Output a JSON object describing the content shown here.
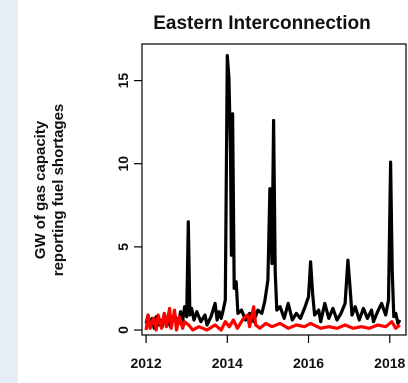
{
  "chart_data": {
    "type": "line",
    "title": "Eastern Interconnection",
    "ylabel_line1": "GW of gas capacity",
    "ylabel_line2": "reporting fuel shortages",
    "xlabel": "",
    "xlim": [
      2011.9,
      2018.4
    ],
    "ylim": [
      -0.3,
      17.2
    ],
    "x_ticks": [
      2012,
      2014,
      2016,
      2018
    ],
    "y_ticks": [
      0,
      5,
      10,
      15
    ],
    "grid": false,
    "series": [
      {
        "color": "#000000",
        "points": [
          [
            2012.0,
            0.4
          ],
          [
            2012.05,
            0.9
          ],
          [
            2012.1,
            0.2
          ],
          [
            2012.15,
            0.7
          ],
          [
            2012.2,
            0.1
          ],
          [
            2012.25,
            0.8
          ],
          [
            2012.3,
            0.3
          ],
          [
            2012.35,
            0.6
          ],
          [
            2012.4,
            0.2
          ],
          [
            2012.45,
            1.0
          ],
          [
            2012.5,
            0.3
          ],
          [
            2012.55,
            0.7
          ],
          [
            2012.6,
            0.2
          ],
          [
            2012.7,
            0.9
          ],
          [
            2012.8,
            0.4
          ],
          [
            2012.85,
            1.1
          ],
          [
            2012.9,
            0.5
          ],
          [
            2012.95,
            1.4
          ],
          [
            2013.0,
            0.8
          ],
          [
            2013.04,
            6.5
          ],
          [
            2013.08,
            0.9
          ],
          [
            2013.12,
            1.3
          ],
          [
            2013.18,
            0.6
          ],
          [
            2013.25,
            1.1
          ],
          [
            2013.35,
            0.5
          ],
          [
            2013.45,
            0.9
          ],
          [
            2013.5,
            0.3
          ],
          [
            2013.6,
            0.8
          ],
          [
            2013.7,
            1.6
          ],
          [
            2013.75,
            0.6
          ],
          [
            2013.8,
            1.1
          ],
          [
            2013.85,
            0.7
          ],
          [
            2013.9,
            1.2
          ],
          [
            2013.95,
            1.8
          ],
          [
            2014.0,
            16.5
          ],
          [
            2014.04,
            15.2
          ],
          [
            2014.08,
            10.8
          ],
          [
            2014.1,
            4.5
          ],
          [
            2014.13,
            13.0
          ],
          [
            2014.17,
            2.5
          ],
          [
            2014.22,
            2.9
          ],
          [
            2014.26,
            1.0
          ],
          [
            2014.35,
            1.2
          ],
          [
            2014.45,
            0.6
          ],
          [
            2014.55,
            1.0
          ],
          [
            2014.65,
            0.5
          ],
          [
            2014.75,
            1.2
          ],
          [
            2014.85,
            1.0
          ],
          [
            2014.92,
            1.7
          ],
          [
            2015.0,
            3.0
          ],
          [
            2015.05,
            8.5
          ],
          [
            2015.1,
            4.0
          ],
          [
            2015.14,
            12.6
          ],
          [
            2015.18,
            3.5
          ],
          [
            2015.22,
            1.2
          ],
          [
            2015.3,
            1.4
          ],
          [
            2015.4,
            0.7
          ],
          [
            2015.5,
            1.6
          ],
          [
            2015.6,
            0.6
          ],
          [
            2015.7,
            1.0
          ],
          [
            2015.8,
            0.7
          ],
          [
            2015.9,
            1.3
          ],
          [
            2016.0,
            2.0
          ],
          [
            2016.05,
            4.1
          ],
          [
            2016.1,
            2.2
          ],
          [
            2016.15,
            0.9
          ],
          [
            2016.25,
            1.2
          ],
          [
            2016.3,
            0.5
          ],
          [
            2016.4,
            1.6
          ],
          [
            2016.5,
            0.7
          ],
          [
            2016.6,
            1.3
          ],
          [
            2016.7,
            0.6
          ],
          [
            2016.8,
            1.0
          ],
          [
            2016.9,
            1.6
          ],
          [
            2016.97,
            4.2
          ],
          [
            2017.02,
            2.6
          ],
          [
            2017.07,
            0.9
          ],
          [
            2017.15,
            1.4
          ],
          [
            2017.25,
            0.6
          ],
          [
            2017.35,
            1.3
          ],
          [
            2017.45,
            0.7
          ],
          [
            2017.55,
            1.2
          ],
          [
            2017.6,
            0.5
          ],
          [
            2017.7,
            1.1
          ],
          [
            2017.8,
            1.6
          ],
          [
            2017.9,
            0.9
          ],
          [
            2017.97,
            1.8
          ],
          [
            2018.02,
            10.1
          ],
          [
            2018.06,
            3.6
          ],
          [
            2018.1,
            0.8
          ],
          [
            2018.15,
            1.0
          ],
          [
            2018.2,
            0.4
          ],
          [
            2018.25,
            0.6
          ]
        ]
      },
      {
        "color": "#ff0000",
        "points": [
          [
            2012.0,
            0.0
          ],
          [
            2012.05,
            0.9
          ],
          [
            2012.1,
            0.1
          ],
          [
            2012.18,
            0.7
          ],
          [
            2012.25,
            0.0
          ],
          [
            2012.3,
            0.9
          ],
          [
            2012.38,
            0.1
          ],
          [
            2012.45,
            1.0
          ],
          [
            2012.5,
            0.2
          ],
          [
            2012.58,
            1.3
          ],
          [
            2012.62,
            0.1
          ],
          [
            2012.7,
            1.2
          ],
          [
            2012.75,
            0.0
          ],
          [
            2012.82,
            0.8
          ],
          [
            2012.9,
            0.1
          ],
          [
            2012.95,
            0.5
          ],
          [
            2013.05,
            0.3
          ],
          [
            2013.15,
            0.0
          ],
          [
            2013.3,
            0.2
          ],
          [
            2013.5,
            0.0
          ],
          [
            2013.7,
            0.3
          ],
          [
            2013.85,
            0.0
          ],
          [
            2013.95,
            0.5
          ],
          [
            2014.05,
            0.2
          ],
          [
            2014.15,
            0.6
          ],
          [
            2014.25,
            0.1
          ],
          [
            2014.4,
            0.7
          ],
          [
            2014.5,
            0.9
          ],
          [
            2014.55,
            0.2
          ],
          [
            2014.65,
            1.4
          ],
          [
            2014.7,
            0.3
          ],
          [
            2014.8,
            0.1
          ],
          [
            2014.95,
            0.4
          ],
          [
            2015.1,
            0.2
          ],
          [
            2015.3,
            0.4
          ],
          [
            2015.5,
            0.1
          ],
          [
            2015.7,
            0.3
          ],
          [
            2015.9,
            0.2
          ],
          [
            2016.05,
            0.4
          ],
          [
            2016.3,
            0.1
          ],
          [
            2016.5,
            0.2
          ],
          [
            2016.7,
            0.1
          ],
          [
            2016.9,
            0.3
          ],
          [
            2017.1,
            0.1
          ],
          [
            2017.3,
            0.2
          ],
          [
            2017.5,
            0.1
          ],
          [
            2017.7,
            0.3
          ],
          [
            2017.9,
            0.2
          ],
          [
            2018.05,
            0.5
          ],
          [
            2018.15,
            0.1
          ],
          [
            2018.25,
            0.3
          ]
        ]
      }
    ]
  }
}
